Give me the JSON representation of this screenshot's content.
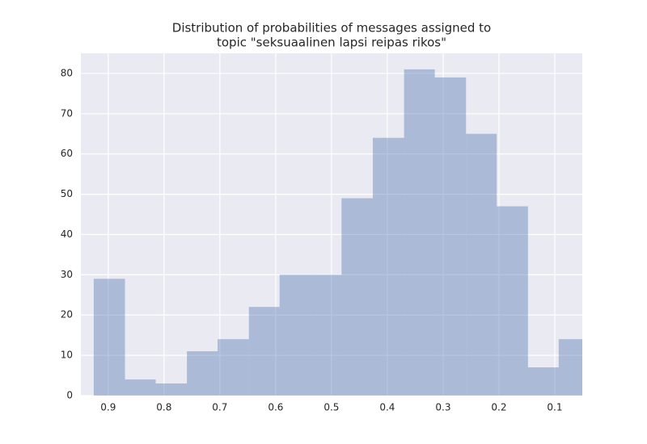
{
  "chart_data": {
    "type": "histogram",
    "title": [
      "Distribution of probabilities of messages assigned to",
      "topic \"seksuaalinen lapsi reipas rikos\""
    ],
    "bins": [
      0.926,
      0.87,
      0.815,
      0.759,
      0.704,
      0.648,
      0.593,
      0.537,
      0.482,
      0.426,
      0.37,
      0.315,
      0.259,
      0.204,
      0.148,
      0.093,
      0.037
    ],
    "counts": [
      29,
      4,
      3,
      11,
      14,
      22,
      30,
      30,
      49,
      64,
      81,
      79,
      65,
      47,
      7,
      14
    ],
    "color": "#4c72b0",
    "opacity": 0.4,
    "xlim": [
      0.949,
      0.0507
    ],
    "xticks": [
      0.9,
      0.8,
      0.7,
      0.6,
      0.5,
      0.4,
      0.3,
      0.2,
      0.1
    ],
    "ylim": [
      0,
      85
    ],
    "yticks": [
      0,
      10,
      20,
      30,
      40,
      50,
      60,
      70,
      80
    ],
    "grid": true
  }
}
